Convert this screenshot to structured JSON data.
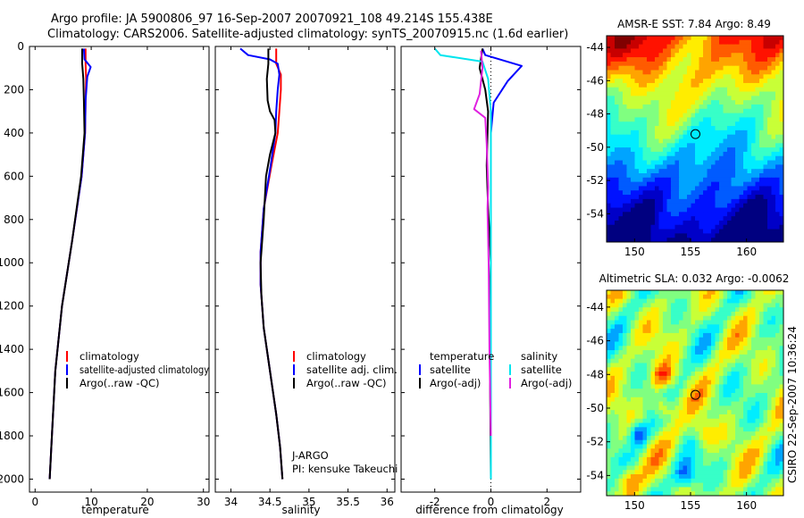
{
  "header": {
    "line1": "Argo profile: JA 5900806_97 16-Sep-2007 20070921_108 49.214S 155.438E",
    "line2": "Climatology: CARS2006. Satellite-adjusted climatology: synTS_20070915.nc (1.6d earlier)"
  },
  "colors": {
    "climatology": "#ff0000",
    "satellite": "#0000ff",
    "argo": "#000000",
    "salinity_satellite": "#00e5ee",
    "salinity_argo": "#e020e0"
  },
  "chart_data": [
    {
      "type": "line",
      "panel": "temperature",
      "xlabel": "temperature",
      "ylabel": "",
      "xlim": [
        -1,
        31
      ],
      "ylim": [
        2060,
        0
      ],
      "xticks": [
        0,
        10,
        20,
        30
      ],
      "xtick_labels": [
        "0",
        "10",
        "20",
        "30"
      ],
      "yticks": [
        0,
        200,
        400,
        600,
        800,
        1000,
        1200,
        1400,
        1600,
        1800,
        2000
      ],
      "ytick_labels": [
        "0",
        "200",
        "400",
        "600",
        "800",
        "1000",
        "1200",
        "1400",
        "1600",
        "1800",
        "2000"
      ],
      "legend": [
        "climatology",
        "satellite-adjusted climatology",
        "Argo(..raw -QC)"
      ],
      "series": [
        {
          "name": "climatology",
          "color": "#ff0000",
          "points": [
            [
              9.0,
              10
            ],
            [
              9.0,
              80
            ],
            [
              9.1,
              150
            ],
            [
              9.0,
              250
            ],
            [
              8.9,
              400
            ],
            [
              8.3,
              600
            ],
            [
              6.6,
              900
            ],
            [
              4.8,
              1200
            ],
            [
              3.6,
              1500
            ],
            [
              3.0,
              1800
            ],
            [
              2.6,
              2000
            ]
          ]
        },
        {
          "name": "satellite-adjusted climatology",
          "color": "#0000ff",
          "points": [
            [
              8.7,
              10
            ],
            [
              8.8,
              60
            ],
            [
              9.9,
              95
            ],
            [
              9.3,
              140
            ],
            [
              9.0,
              250
            ],
            [
              8.9,
              400
            ],
            [
              8.3,
              600
            ],
            [
              6.6,
              900
            ],
            [
              4.8,
              1200
            ],
            [
              3.6,
              1500
            ],
            [
              3.0,
              1800
            ],
            [
              2.6,
              2000
            ]
          ]
        },
        {
          "name": "Argo(..raw -QC)",
          "color": "#000000",
          "points": [
            [
              8.4,
              10
            ],
            [
              8.4,
              80
            ],
            [
              8.6,
              150
            ],
            [
              8.7,
              250
            ],
            [
              8.8,
              400
            ],
            [
              8.2,
              600
            ],
            [
              6.6,
              900
            ],
            [
              4.8,
              1200
            ],
            [
              3.6,
              1500
            ],
            [
              3.0,
              1800
            ],
            [
              2.6,
              2000
            ]
          ]
        }
      ]
    },
    {
      "type": "line",
      "panel": "salinity",
      "xlabel": "salinity",
      "ylabel": "",
      "xlim": [
        33.8,
        36.1
      ],
      "ylim": [
        2060,
        0
      ],
      "xticks": [
        34,
        34.5,
        35,
        35.5,
        36
      ],
      "xtick_labels": [
        "34",
        "34.5",
        "35",
        "35.5",
        "36"
      ],
      "yticks": [
        0,
        200,
        400,
        600,
        800,
        1000,
        1200,
        1400,
        1600,
        1800,
        2000
      ],
      "legend": [
        "climatology",
        "satellite adj. clim.",
        "Argo(..raw -QC)"
      ],
      "annotations": [
        "J-ARGO",
        "PI: kensuke Takeuchi"
      ],
      "series": [
        {
          "name": "climatology",
          "color": "#ff0000",
          "points": [
            [
              34.58,
              10
            ],
            [
              34.58,
              80
            ],
            [
              34.64,
              130
            ],
            [
              34.64,
              200
            ],
            [
              34.62,
              300
            ],
            [
              34.6,
              400
            ],
            [
              34.52,
              550
            ],
            [
              34.42,
              750
            ],
            [
              34.38,
              950
            ],
            [
              34.38,
              1100
            ],
            [
              34.42,
              1300
            ],
            [
              34.5,
              1500
            ],
            [
              34.58,
              1700
            ],
            [
              34.63,
              1850
            ],
            [
              34.66,
              2000
            ]
          ]
        },
        {
          "name": "satellite adj. clim.",
          "color": "#0000ff",
          "points": [
            [
              34.12,
              10
            ],
            [
              34.22,
              40
            ],
            [
              34.5,
              60
            ],
            [
              34.6,
              80
            ],
            [
              34.62,
              130
            ],
            [
              34.6,
              200
            ],
            [
              34.58,
              300
            ],
            [
              34.57,
              400
            ],
            [
              34.51,
              550
            ],
            [
              34.42,
              750
            ],
            [
              34.38,
              950
            ],
            [
              34.38,
              1100
            ],
            [
              34.42,
              1300
            ],
            [
              34.5,
              1500
            ],
            [
              34.58,
              1700
            ],
            [
              34.63,
              1850
            ],
            [
              34.66,
              2000
            ]
          ]
        },
        {
          "name": "Argo(..raw -QC)",
          "color": "#000000",
          "points": [
            [
              34.48,
              10
            ],
            [
              34.48,
              80
            ],
            [
              34.46,
              150
            ],
            [
              34.47,
              250
            ],
            [
              34.5,
              300
            ],
            [
              34.56,
              340
            ],
            [
              34.57,
              400
            ],
            [
              34.5,
              500
            ],
            [
              34.45,
              600
            ],
            [
              34.42,
              800
            ],
            [
              34.38,
              1000
            ],
            [
              34.39,
              1150
            ],
            [
              34.42,
              1300
            ],
            [
              34.5,
              1500
            ],
            [
              34.58,
              1700
            ],
            [
              34.63,
              1850
            ],
            [
              34.66,
              2000
            ]
          ]
        }
      ]
    },
    {
      "type": "line",
      "panel": "difference",
      "xlabel": "difference from climatology",
      "ylabel": "",
      "xlim": [
        -3.2,
        3.2
      ],
      "ylim": [
        2060,
        0
      ],
      "xticks": [
        -2,
        0,
        2
      ],
      "xtick_labels": [
        "-2",
        "0",
        "2"
      ],
      "yticks": [
        0,
        200,
        400,
        600,
        800,
        1000,
        1200,
        1400,
        1600,
        1800,
        2000
      ],
      "legend_titles": [
        "temperature",
        "salinity"
      ],
      "legend": [
        "satellite",
        "Argo(-adj)",
        "satellite",
        "Argo(-adj)"
      ],
      "series": [
        {
          "name": "temperature satellite",
          "color": "#0000ff",
          "points": [
            [
              -0.3,
              10
            ],
            [
              -0.2,
              40
            ],
            [
              1.1,
              90
            ],
            [
              0.6,
              160
            ],
            [
              0.1,
              260
            ],
            [
              0,
              400
            ],
            [
              0,
              2000
            ]
          ]
        },
        {
          "name": "temperature Argo(-adj)",
          "color": "#000000",
          "points": [
            [
              -0.3,
              10
            ],
            [
              -0.4,
              100
            ],
            [
              -0.2,
              200
            ],
            [
              -0.1,
              300
            ],
            [
              -0.15,
              550
            ],
            [
              -0.1,
              750
            ],
            [
              0,
              1000
            ],
            [
              -0.05,
              1200
            ],
            [
              0,
              2000
            ]
          ]
        },
        {
          "name": "salinity satellite",
          "color": "#00e5ee",
          "points": [
            [
              -2.0,
              10
            ],
            [
              -1.8,
              40
            ],
            [
              -0.3,
              70
            ],
            [
              -0.1,
              150
            ],
            [
              0,
              300
            ],
            [
              0,
              2000
            ]
          ]
        },
        {
          "name": "salinity Argo(-adj)",
          "color": "#e020e0",
          "points": [
            [
              -0.35,
              20
            ],
            [
              -0.3,
              100
            ],
            [
              -0.4,
              220
            ],
            [
              -0.6,
              290
            ],
            [
              -0.2,
              330
            ],
            [
              -0.15,
              450
            ],
            [
              -0.1,
              650
            ],
            [
              -0.12,
              750
            ],
            [
              -0.08,
              1000
            ],
            [
              -0.05,
              1400
            ],
            [
              0,
              1800
            ]
          ]
        }
      ]
    },
    {
      "type": "heatmap",
      "panel": "sst_map",
      "title": "AMSR-E SST: 7.84 Argo: 8.49",
      "xlim": [
        147.5,
        163.3
      ],
      "ylim": [
        -55.7,
        -43.3
      ],
      "xticks": [
        150,
        155,
        160
      ],
      "xtick_labels": [
        "150",
        "155",
        "160"
      ],
      "yticks": [
        -44,
        -46,
        -48,
        -50,
        -52,
        -54
      ],
      "ytick_labels": [
        "-44",
        "-46",
        "-48",
        "-50",
        "-52",
        "-54"
      ],
      "marker": {
        "lon": 155.438,
        "lat": -49.214
      }
    },
    {
      "type": "heatmap",
      "panel": "sla_map",
      "title": "Altimetric SLA: 0.032 Argo: -0.0062",
      "xlim": [
        147.5,
        163.3
      ],
      "ylim": [
        -55.2,
        -43.0
      ],
      "xticks": [
        150,
        155,
        160
      ],
      "xtick_labels": [
        "150",
        "155",
        "160"
      ],
      "yticks": [
        -44,
        -46,
        -48,
        -50,
        -52,
        -54
      ],
      "ytick_labels": [
        "-44",
        "-46",
        "-48",
        "-50",
        "-52",
        "-54"
      ],
      "marker": {
        "lon": 155.438,
        "lat": -49.214
      }
    }
  ],
  "side_label": "CSIRO 22-Sep-2007 10:36:24"
}
